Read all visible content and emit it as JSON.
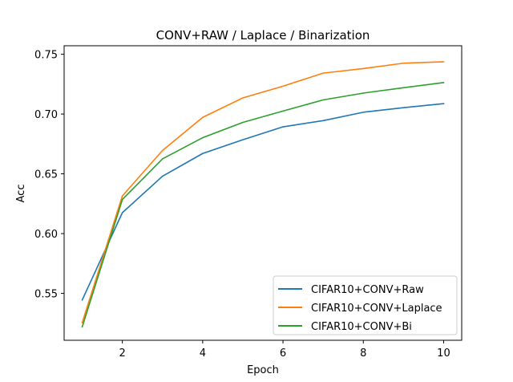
{
  "chart_data": {
    "type": "line",
    "title": "CONV+RAW / Laplace / Binarization",
    "xlabel": "Epoch",
    "ylabel": "Acc",
    "xlim": [
      0.55,
      10.45
    ],
    "ylim": [
      0.5108,
      0.7571
    ],
    "xticks": [
      2,
      4,
      6,
      8,
      10
    ],
    "xtick_labels": [
      "2",
      "4",
      "6",
      "8",
      "10"
    ],
    "yticks": [
      0.55,
      0.6,
      0.65,
      0.7,
      0.75
    ],
    "ytick_labels": [
      "0.55",
      "0.60",
      "0.65",
      "0.70",
      "0.75"
    ],
    "grid": false,
    "legend_position": "lower-right",
    "x": [
      1,
      2,
      3,
      4,
      5,
      6,
      7,
      8,
      9,
      10
    ],
    "series": [
      {
        "name": "CIFAR10+CONV+Raw",
        "color": "#1f77b4",
        "values": [
          0.5445,
          0.6175,
          0.648,
          0.667,
          0.6785,
          0.6893,
          0.6945,
          0.7015,
          0.7053,
          0.7087
        ]
      },
      {
        "name": "CIFAR10+CONV+Laplace",
        "color": "#ff7f0e",
        "values": [
          0.5255,
          0.6315,
          0.6695,
          0.6972,
          0.7135,
          0.7233,
          0.7342,
          0.738,
          0.7425,
          0.7437
        ]
      },
      {
        "name": "CIFAR10+CONV+Bi",
        "color": "#2ca02c",
        "values": [
          0.522,
          0.6285,
          0.6625,
          0.6802,
          0.693,
          0.7025,
          0.7118,
          0.7175,
          0.722,
          0.7263
        ]
      }
    ]
  }
}
